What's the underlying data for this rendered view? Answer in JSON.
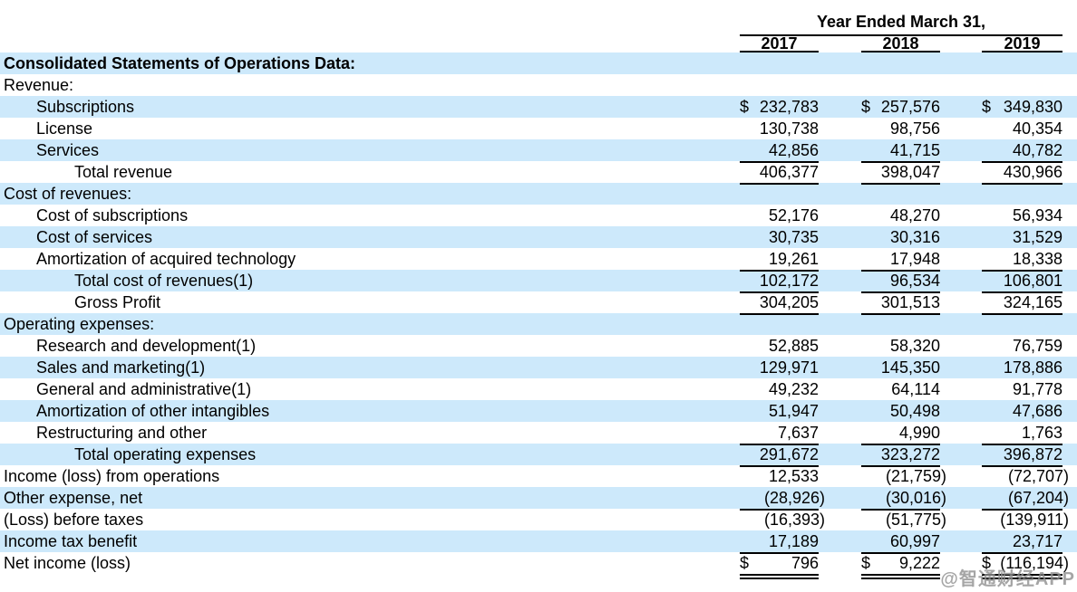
{
  "colors": {
    "highlight": "#cde9fb",
    "rule": "#000000",
    "watermark": "#8f8f8f"
  },
  "currency_symbol": "$",
  "header": {
    "col_group_label": "Year Ended March 31,",
    "years": [
      "2017",
      "2018",
      "2019"
    ]
  },
  "watermark": {
    "text": "@智通财经APP"
  },
  "table": {
    "rows": [
      {
        "label": "Consolidated Statements of Operations Data:",
        "indent": 0,
        "bold": true,
        "highlight": true,
        "values": null
      },
      {
        "label": "Revenue:",
        "indent": 0,
        "highlight": false,
        "values": null
      },
      {
        "label": "Subscriptions",
        "indent": 1,
        "highlight": true,
        "dollar": true,
        "values": [
          "232,783",
          "257,576",
          "349,830"
        ]
      },
      {
        "label": "License",
        "indent": 1,
        "highlight": false,
        "values": [
          "130,738",
          "98,756",
          "40,354"
        ]
      },
      {
        "label": "Services",
        "indent": 1,
        "highlight": true,
        "underline": "single",
        "values": [
          "42,856",
          "41,715",
          "40,782"
        ]
      },
      {
        "label": "Total revenue",
        "indent": 2,
        "highlight": false,
        "underline": "single",
        "values": [
          "406,377",
          "398,047",
          "430,966"
        ]
      },
      {
        "label": "Cost of revenues:",
        "indent": 0,
        "highlight": true,
        "values": null
      },
      {
        "label": "Cost of subscriptions",
        "indent": 1,
        "highlight": false,
        "values": [
          "52,176",
          "48,270",
          "56,934"
        ]
      },
      {
        "label": "Cost of services",
        "indent": 1,
        "highlight": true,
        "values": [
          "30,735",
          "30,316",
          "31,529"
        ]
      },
      {
        "label": "Amortization of acquired technology",
        "indent": 1,
        "highlight": false,
        "underline": "single",
        "values": [
          "19,261",
          "17,948",
          "18,338"
        ]
      },
      {
        "label": "Total cost of revenues(1)",
        "indent": 2,
        "highlight": true,
        "underline": "single",
        "values": [
          "102,172",
          "96,534",
          "106,801"
        ]
      },
      {
        "label": "Gross Profit",
        "indent": 2,
        "highlight": false,
        "underline": "single",
        "values": [
          "304,205",
          "301,513",
          "324,165"
        ]
      },
      {
        "label": "Operating expenses:",
        "indent": 0,
        "highlight": true,
        "values": null
      },
      {
        "label": "Research and development(1)",
        "indent": 1,
        "highlight": false,
        "values": [
          "52,885",
          "58,320",
          "76,759"
        ]
      },
      {
        "label": "Sales and marketing(1)",
        "indent": 1,
        "highlight": true,
        "values": [
          "129,971",
          "145,350",
          "178,886"
        ]
      },
      {
        "label": "General and administrative(1)",
        "indent": 1,
        "highlight": false,
        "values": [
          "49,232",
          "64,114",
          "91,778"
        ]
      },
      {
        "label": "Amortization of other intangibles",
        "indent": 1,
        "highlight": true,
        "values": [
          "51,947",
          "50,498",
          "47,686"
        ]
      },
      {
        "label": "Restructuring and other",
        "indent": 1,
        "highlight": false,
        "underline": "single",
        "values": [
          "7,637",
          "4,990",
          "1,763"
        ]
      },
      {
        "label": "Total operating expenses",
        "indent": 2,
        "highlight": true,
        "underline": "single",
        "values": [
          "291,672",
          "323,272",
          "396,872"
        ]
      },
      {
        "label": "Income (loss) from operations",
        "indent": 0,
        "highlight": false,
        "values": [
          "12,533",
          "(21,759)",
          "(72,707)"
        ]
      },
      {
        "label": "Other expense, net",
        "indent": 0,
        "highlight": true,
        "underline": "single",
        "values": [
          "(28,926)",
          "(30,016)",
          "(67,204)"
        ]
      },
      {
        "label": "(Loss) before taxes",
        "indent": 0,
        "highlight": false,
        "values": [
          "(16,393)",
          "(51,775)",
          "(139,911)"
        ]
      },
      {
        "label": "Income tax benefit",
        "indent": 0,
        "highlight": true,
        "underline": "single",
        "values": [
          "17,189",
          "60,997",
          "23,717"
        ]
      },
      {
        "label": "Net income (loss)",
        "indent": 0,
        "highlight": false,
        "dollar": true,
        "underline": "double",
        "values": [
          "796",
          "9,222",
          "(116,194)"
        ]
      }
    ]
  }
}
